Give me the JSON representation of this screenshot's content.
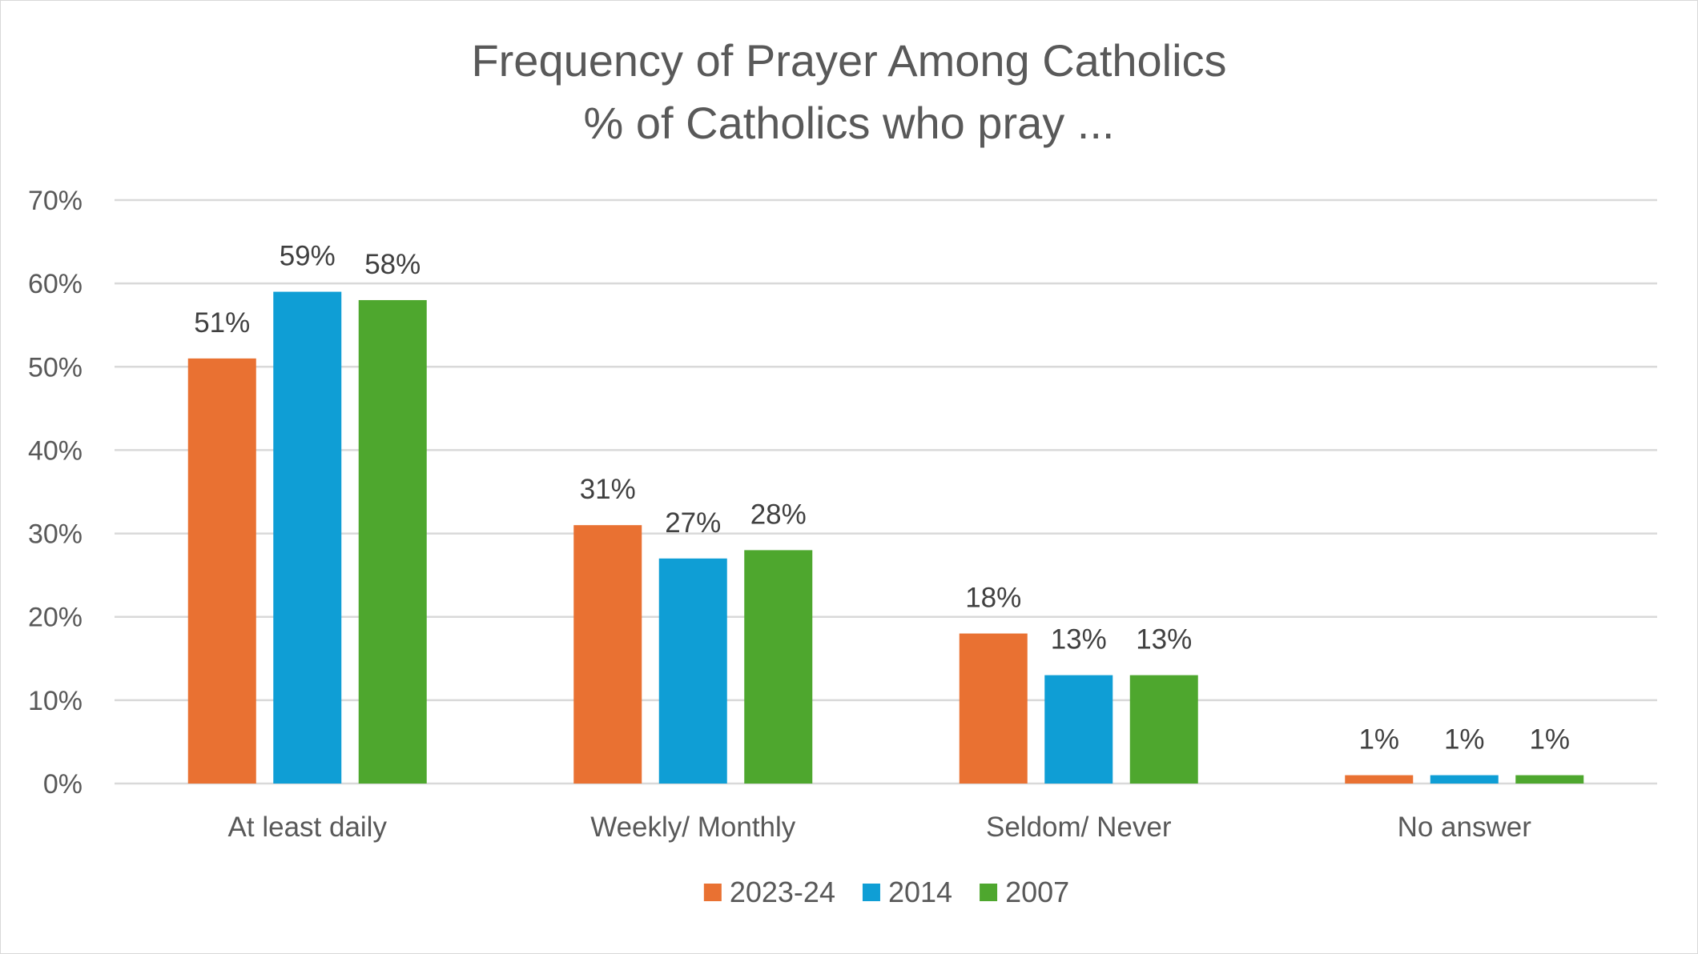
{
  "chart_data": {
    "type": "bar",
    "title": "Frequency of Prayer Among Catholics",
    "subtitle": "% of Catholics who pray ...",
    "categories": [
      "At least daily",
      "Weekly/ Monthly",
      "Seldom/ Never",
      "No answer"
    ],
    "series": [
      {
        "name": "2023-24",
        "color": "#E97132",
        "values": [
          51,
          31,
          18,
          1
        ]
      },
      {
        "name": "2014",
        "color": "#0F9ED5",
        "values": [
          59,
          27,
          13,
          1
        ]
      },
      {
        "name": "2007",
        "color": "#4EA72E",
        "values": [
          58,
          28,
          13,
          1
        ]
      }
    ],
    "ylim": [
      0,
      70
    ],
    "yticks": [
      0,
      10,
      20,
      30,
      40,
      50,
      60,
      70
    ],
    "ytick_format": "percent",
    "value_suffix": "%",
    "grid": true,
    "legend_position": "bottom",
    "data_labels": true
  }
}
